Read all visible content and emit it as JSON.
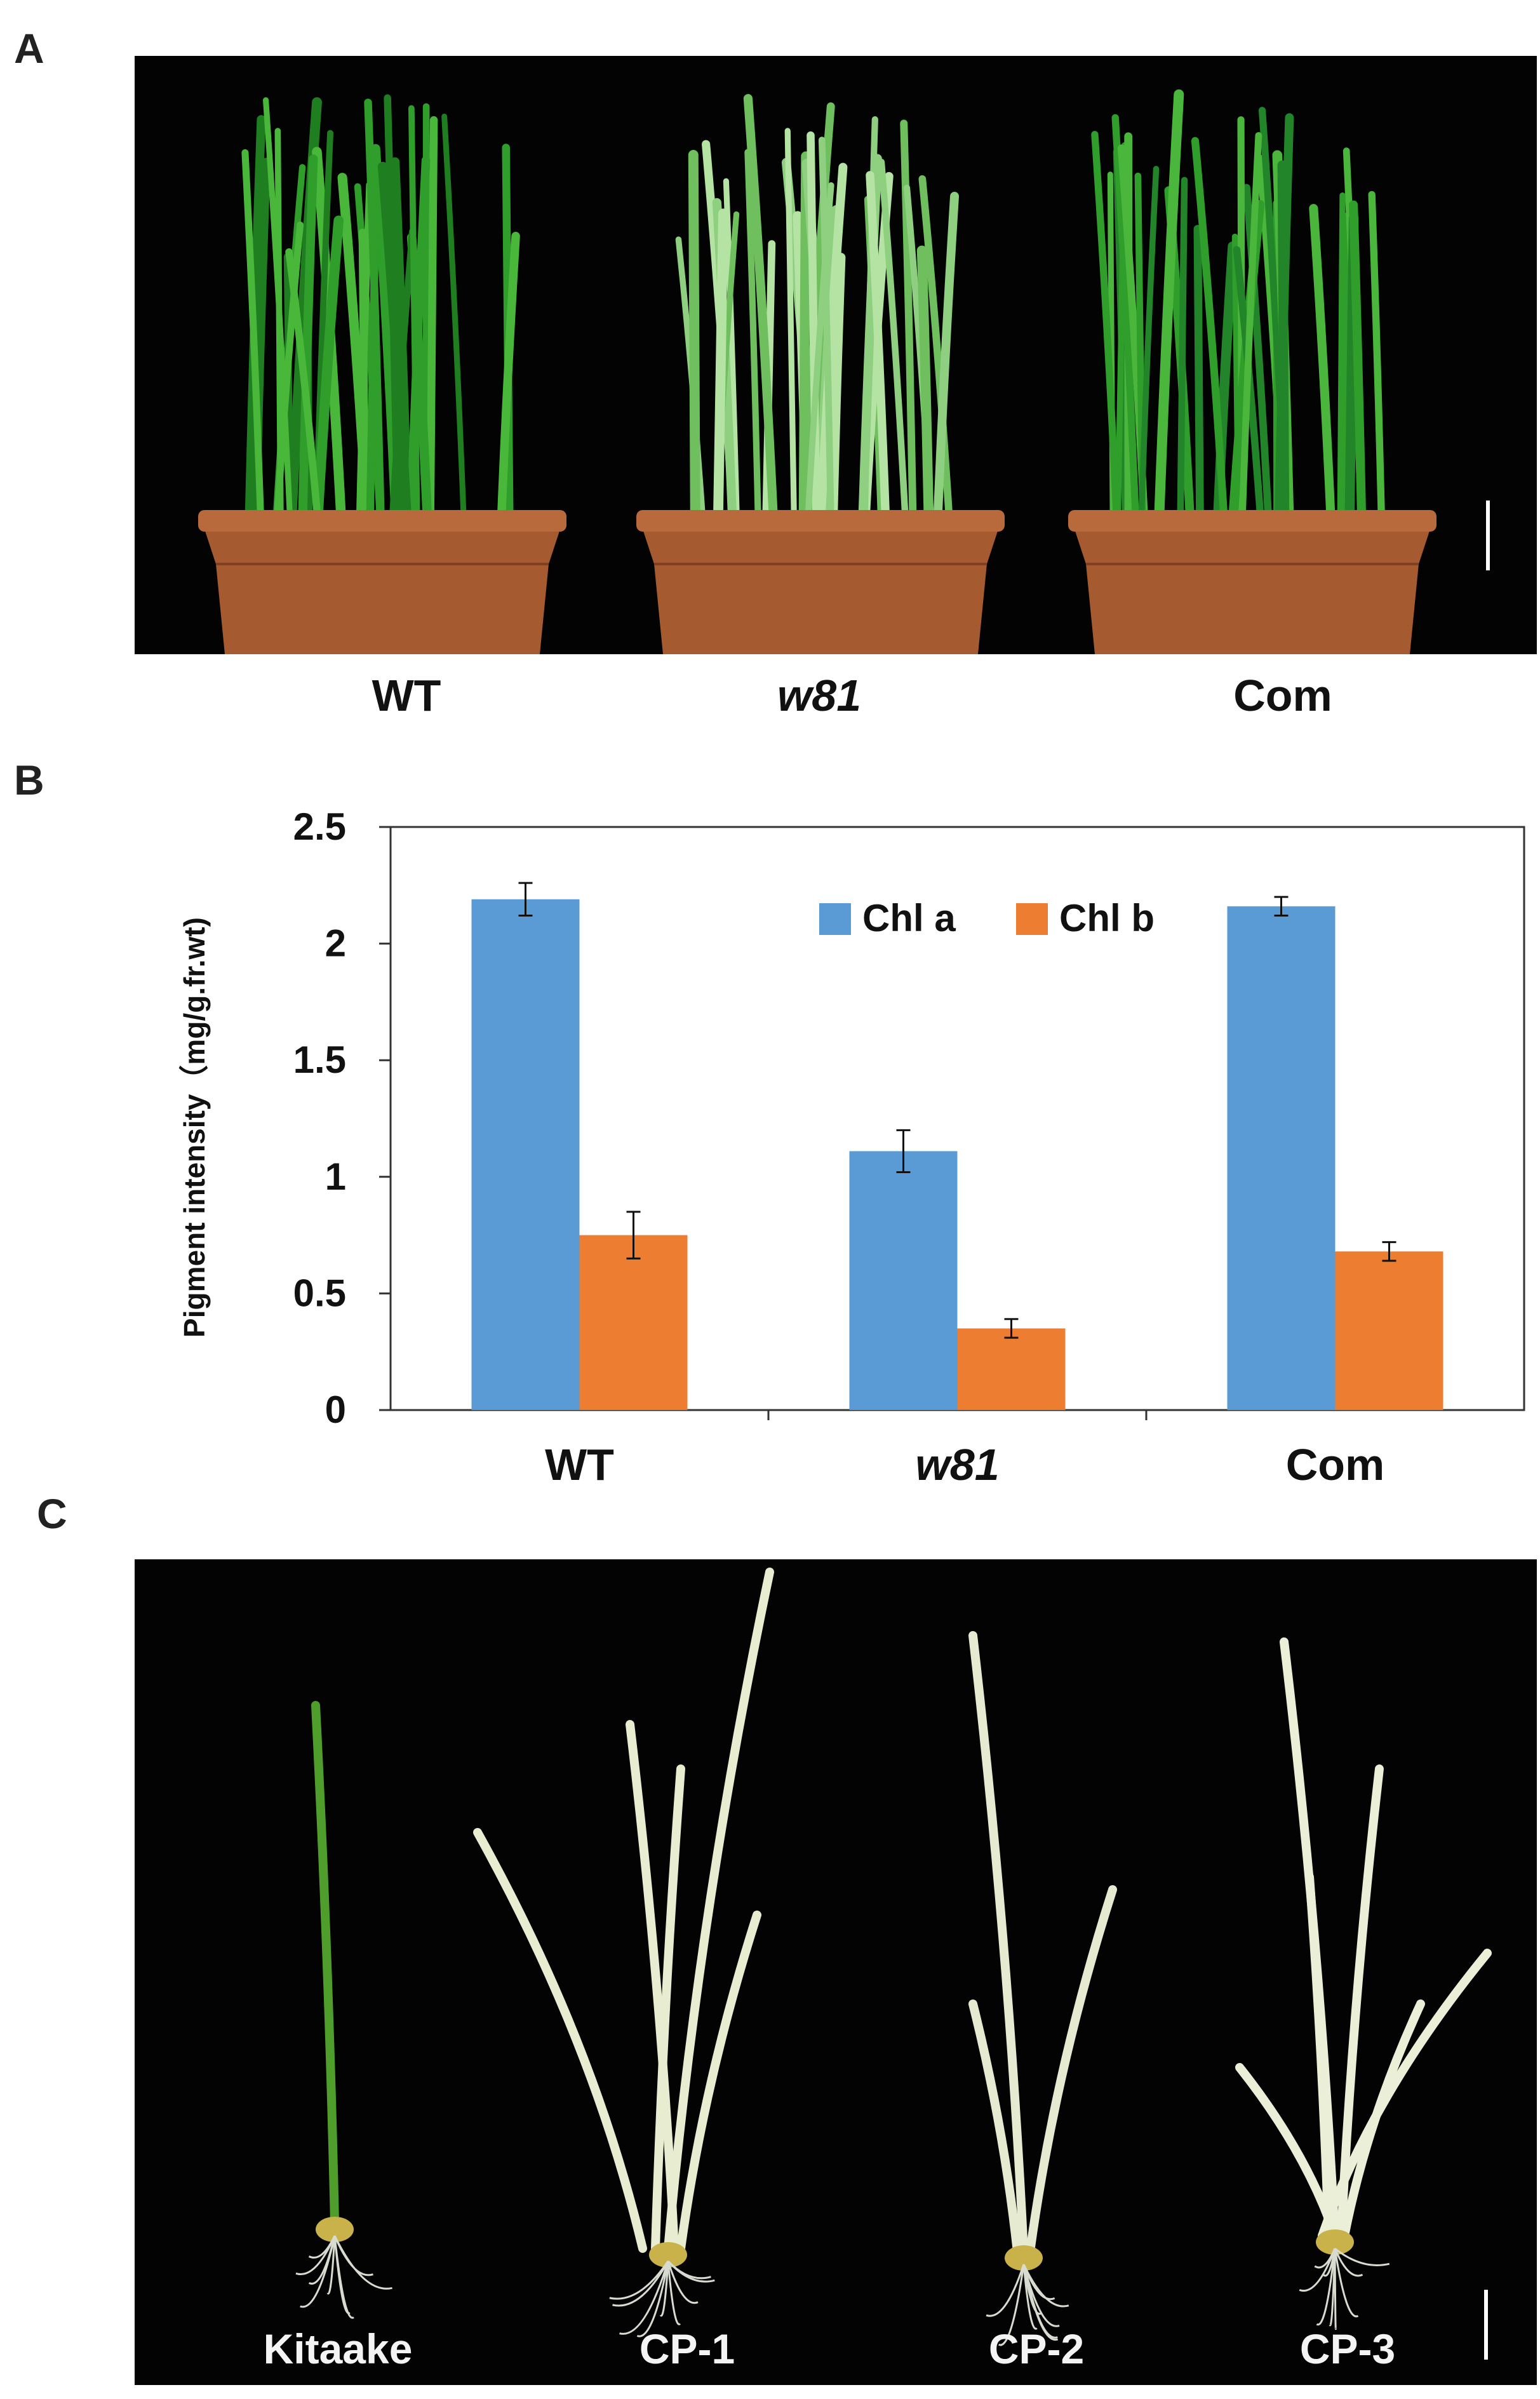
{
  "panels": {
    "a": {
      "letter": "A",
      "genotype_labels": [
        "WT",
        "w81",
        "Com"
      ]
    },
    "b": {
      "letter": "B"
    },
    "c": {
      "letter": "C",
      "line_labels": [
        "Kitaake",
        "CP-1",
        "CP-2",
        "CP-3"
      ]
    }
  },
  "colors": {
    "chl_a": "#5b9bd5",
    "chl_b": "#ed7d31",
    "photo_background": "#030303",
    "green_leaf": "#3faa2e",
    "albino_leaf": "#e8ecd0",
    "pot": "#a55a30"
  },
  "chart_data": {
    "type": "bar",
    "categories": [
      "WT",
      "w81",
      "Com"
    ],
    "series": [
      {
        "name": "Chl a",
        "values": [
          2.19,
          1.11,
          2.16
        ],
        "errors": [
          0.07,
          0.09,
          0.04
        ]
      },
      {
        "name": "Chl b",
        "values": [
          0.75,
          0.35,
          0.68
        ],
        "errors": [
          0.1,
          0.04,
          0.04
        ]
      }
    ],
    "ylabel": "Pigment intensity（mg/g.fr.wt)",
    "ylim": [
      0,
      2.5
    ],
    "yticks": [
      "0",
      "0.5",
      "1",
      "1.5",
      "2",
      "2.5"
    ],
    "grid": false,
    "legend_position": "top-right"
  }
}
